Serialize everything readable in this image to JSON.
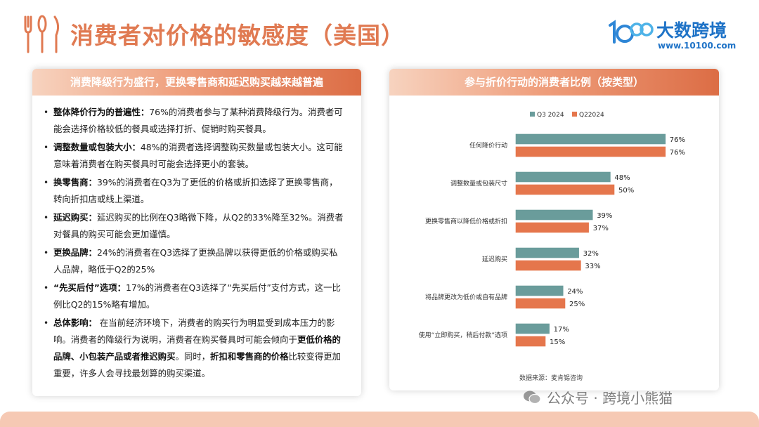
{
  "page": {
    "title": "消费者对价格的敏感度（美国）",
    "logo": {
      "name": "大数跨境",
      "url": "www.10100.com",
      "mark_text": "100"
    },
    "watermark": "公众号 · 跨境小熊猫",
    "icons": [
      "utensils-icon"
    ]
  },
  "left_panel": {
    "header": "消费降级行为盛行，更换零售商和延迟购买越来越普遍",
    "bullets": [
      {
        "label": "整体降价行为的普遍性：",
        "text": "76%的消费者参与了某种消费降级行为。消费者可能会选择价格较低的餐具或选择打折、促销时购买餐具。"
      },
      {
        "label": "调整数量或包装大小：",
        "text": "48%的消费者选择调整购买数量或包装大小。这可能意味着消费者在购买餐具时可能会选择更小的套装。"
      },
      {
        "label": "换零售商：",
        "text": "39%的消费者在Q3为了更低的价格或折扣选择了更换零售商，转向折扣店或线上渠道。"
      },
      {
        "label": "延迟购买：",
        "text": "延迟购买的比例在Q3略微下降，从Q2的33%降至32%。消费者对餐具的购买可能会更加谨慎。"
      },
      {
        "label": "更换品牌：",
        "text": "24%的消费者在Q3选择了更换品牌以获得更低的价格或购买私人品牌，略低于Q2的25%"
      },
      {
        "label": "“先买后付”选项：",
        "text": "17%的消费者在Q3选择了“先买后付”支付方式，这一比例比Q2的15%略有增加。"
      },
      {
        "label": "总体影响：",
        "text_parts": [
          {
            "t": "在当前经济环境下，消费者的购买行为明显受到成本压力的影响。消费者的降级行为说明，消费者在购买餐具时可能会倾向于",
            "b": false
          },
          {
            "t": "更低价格的品牌、小包装产品或者推迟购买",
            "b": true
          },
          {
            "t": "。同时，",
            "b": false
          },
          {
            "t": "折扣和零售商的价格",
            "b": true
          },
          {
            "t": "比较变得更加重要，许多人会寻找最划算的购买渠道。",
            "b": false
          }
        ]
      }
    ]
  },
  "right_panel": {
    "header": "参与折价行动的消费者比例（按类型）"
  },
  "chart_data": {
    "type": "bar",
    "orientation": "horizontal",
    "categories": [
      "任何降价行动",
      "调整数量或包装尺寸",
      "更换零售商以降低价格或折扣",
      "延迟购买",
      "将品牌更改为低价或自有品牌",
      "使用“立即购买，稍后付款”选项"
    ],
    "series": [
      {
        "name": "Q3 2024",
        "values": [
          76,
          48,
          39,
          32,
          24,
          17
        ],
        "color": "#6a9c9b"
      },
      {
        "name": "Q22024",
        "values": [
          76,
          50,
          37,
          33,
          25,
          15
        ],
        "color": "#e5764c"
      }
    ],
    "value_suffix": "%",
    "xlim": [
      0,
      100
    ],
    "legend": "top-left",
    "grid": false,
    "source": "数据来源：麦肯锡咨询"
  }
}
